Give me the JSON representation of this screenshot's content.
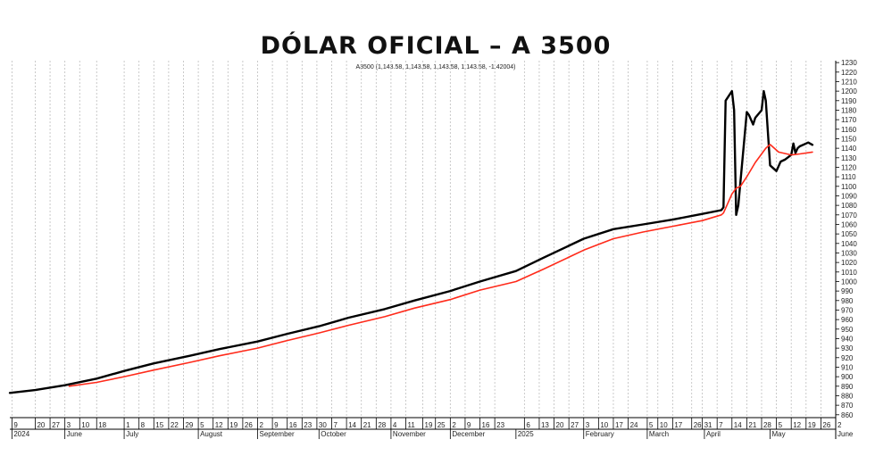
{
  "chart_data": {
    "type": "line",
    "title": "DÓLAR OFICIAL – A 3500",
    "info_text": "A3500 (1,143.58, 1,143.58, 1,143.58, 1,143.58, -1.42004)",
    "xlabel": "",
    "ylabel": "",
    "x_range": [
      "2024-05-08",
      "2025-06-02"
    ],
    "ylim": [
      857,
      1232
    ],
    "grid": true,
    "y_axis_position": "right",
    "y_ticks": [
      860,
      870,
      880,
      890,
      900,
      910,
      920,
      930,
      940,
      950,
      960,
      970,
      980,
      990,
      1000,
      1010,
      1020,
      1030,
      1040,
      1050,
      1060,
      1070,
      1080,
      1090,
      1100,
      1110,
      1120,
      1130,
      1140,
      1150,
      1160,
      1170,
      1180,
      1190,
      1200,
      1210,
      1220,
      1230
    ],
    "day_ticks": [
      {
        "label": "9",
        "date": "2024-05-09"
      },
      {
        "label": "20",
        "date": "2024-05-20"
      },
      {
        "label": "27",
        "date": "2024-05-27"
      },
      {
        "label": "3",
        "date": "2024-06-03"
      },
      {
        "label": "10",
        "date": "2024-06-10"
      },
      {
        "label": "18",
        "date": "2024-06-18"
      },
      {
        "label": "1",
        "date": "2024-07-01"
      },
      {
        "label": "8",
        "date": "2024-07-08"
      },
      {
        "label": "15",
        "date": "2024-07-15"
      },
      {
        "label": "22",
        "date": "2024-07-22"
      },
      {
        "label": "29",
        "date": "2024-07-29"
      },
      {
        "label": "5",
        "date": "2024-08-05"
      },
      {
        "label": "12",
        "date": "2024-08-12"
      },
      {
        "label": "19",
        "date": "2024-08-19"
      },
      {
        "label": "26",
        "date": "2024-08-26"
      },
      {
        "label": "2",
        "date": "2024-09-02"
      },
      {
        "label": "9",
        "date": "2024-09-09"
      },
      {
        "label": "16",
        "date": "2024-09-16"
      },
      {
        "label": "23",
        "date": "2024-09-23"
      },
      {
        "label": "30",
        "date": "2024-09-30"
      },
      {
        "label": "7",
        "date": "2024-10-07"
      },
      {
        "label": "14",
        "date": "2024-10-14"
      },
      {
        "label": "21",
        "date": "2024-10-21"
      },
      {
        "label": "28",
        "date": "2024-10-28"
      },
      {
        "label": "4",
        "date": "2024-11-04"
      },
      {
        "label": "11",
        "date": "2024-11-11"
      },
      {
        "label": "19",
        "date": "2024-11-19"
      },
      {
        "label": "25",
        "date": "2024-11-25"
      },
      {
        "label": "2",
        "date": "2024-12-02"
      },
      {
        "label": "9",
        "date": "2024-12-09"
      },
      {
        "label": "16",
        "date": "2024-12-16"
      },
      {
        "label": "23",
        "date": "2024-12-23"
      },
      {
        "label": "6",
        "date": "2025-01-06"
      },
      {
        "label": "13",
        "date": "2025-01-13"
      },
      {
        "label": "20",
        "date": "2025-01-20"
      },
      {
        "label": "27",
        "date": "2025-01-27"
      },
      {
        "label": "3",
        "date": "2025-02-03"
      },
      {
        "label": "10",
        "date": "2025-02-10"
      },
      {
        "label": "17",
        "date": "2025-02-17"
      },
      {
        "label": "24",
        "date": "2025-02-24"
      },
      {
        "label": "5",
        "date": "2025-03-05"
      },
      {
        "label": "10",
        "date": "2025-03-10"
      },
      {
        "label": "17",
        "date": "2025-03-17"
      },
      {
        "label": "26",
        "date": "2025-03-26"
      },
      {
        "label": "31",
        "date": "2025-03-31"
      },
      {
        "label": "7",
        "date": "2025-04-07"
      },
      {
        "label": "14",
        "date": "2025-04-14"
      },
      {
        "label": "21",
        "date": "2025-04-21"
      },
      {
        "label": "28",
        "date": "2025-04-28"
      },
      {
        "label": "5",
        "date": "2025-05-05"
      },
      {
        "label": "12",
        "date": "2025-05-12"
      },
      {
        "label": "19",
        "date": "2025-05-19"
      },
      {
        "label": "26",
        "date": "2025-05-26"
      },
      {
        "label": "2",
        "date": "2025-06-02"
      }
    ],
    "month_labels": [
      {
        "label": "2024",
        "date": "2024-05-09"
      },
      {
        "label": "June",
        "date": "2024-06-03"
      },
      {
        "label": "July",
        "date": "2024-07-01"
      },
      {
        "label": "August",
        "date": "2024-08-05"
      },
      {
        "label": "September",
        "date": "2024-09-02"
      },
      {
        "label": "October",
        "date": "2024-10-01"
      },
      {
        "label": "November",
        "date": "2024-11-04"
      },
      {
        "label": "December",
        "date": "2024-12-02"
      },
      {
        "label": "2025",
        "date": "2025-01-02"
      },
      {
        "label": "February",
        "date": "2025-02-03"
      },
      {
        "label": "March",
        "date": "2025-03-05"
      },
      {
        "label": "April",
        "date": "2025-04-01"
      },
      {
        "label": "May",
        "date": "2025-05-02"
      },
      {
        "label": "June",
        "date": "2025-06-02"
      }
    ],
    "series": [
      {
        "color": "#000000",
        "points": [
          [
            "2024-05-08",
            883
          ],
          [
            "2024-05-20",
            886
          ],
          [
            "2024-06-03",
            891
          ],
          [
            "2024-06-18",
            898
          ],
          [
            "2024-07-01",
            906
          ],
          [
            "2024-07-15",
            914
          ],
          [
            "2024-08-01",
            922
          ],
          [
            "2024-08-15",
            929
          ],
          [
            "2024-09-02",
            937
          ],
          [
            "2024-09-16",
            945
          ],
          [
            "2024-10-01",
            953
          ],
          [
            "2024-10-15",
            962
          ],
          [
            "2024-11-01",
            971
          ],
          [
            "2024-11-15",
            980
          ],
          [
            "2024-12-02",
            990
          ],
          [
            "2024-12-16",
            1000
          ],
          [
            "2025-01-02",
            1011
          ],
          [
            "2025-01-15",
            1025
          ],
          [
            "2025-02-03",
            1045
          ],
          [
            "2025-02-17",
            1055
          ],
          [
            "2025-03-03",
            1060
          ],
          [
            "2025-03-17",
            1065
          ],
          [
            "2025-03-31",
            1071
          ],
          [
            "2025-04-09",
            1075
          ],
          [
            "2025-04-10",
            1078
          ],
          [
            "2025-04-11",
            1190
          ],
          [
            "2025-04-14",
            1200
          ],
          [
            "2025-04-15",
            1180
          ],
          [
            "2025-04-16",
            1070
          ],
          [
            "2025-04-17",
            1080
          ],
          [
            "2025-04-21",
            1178
          ],
          [
            "2025-04-22",
            1175
          ],
          [
            "2025-04-24",
            1165
          ],
          [
            "2025-04-25",
            1172
          ],
          [
            "2025-04-28",
            1180
          ],
          [
            "2025-04-29",
            1200
          ],
          [
            "2025-04-30",
            1190
          ],
          [
            "2025-05-02",
            1122
          ],
          [
            "2025-05-05",
            1116
          ],
          [
            "2025-05-07",
            1126
          ],
          [
            "2025-05-09",
            1128
          ],
          [
            "2025-05-12",
            1133
          ],
          [
            "2025-05-13",
            1145
          ],
          [
            "2025-05-14",
            1135
          ],
          [
            "2025-05-15",
            1140
          ],
          [
            "2025-05-16",
            1142
          ],
          [
            "2025-05-19",
            1145
          ],
          [
            "2025-05-20",
            1146
          ],
          [
            "2025-05-22",
            1143.58
          ]
        ]
      },
      {
        "color": "#ff2a1a",
        "points": [
          [
            "2024-06-05",
            890
          ],
          [
            "2024-06-18",
            894
          ],
          [
            "2024-07-01",
            900
          ],
          [
            "2024-07-15",
            907
          ],
          [
            "2024-08-01",
            915
          ],
          [
            "2024-08-15",
            922
          ],
          [
            "2024-09-02",
            930
          ],
          [
            "2024-09-16",
            938
          ],
          [
            "2024-10-01",
            946
          ],
          [
            "2024-10-15",
            954
          ],
          [
            "2024-11-01",
            963
          ],
          [
            "2024-11-15",
            972
          ],
          [
            "2024-12-02",
            981
          ],
          [
            "2024-12-16",
            991
          ],
          [
            "2025-01-02",
            1000
          ],
          [
            "2025-01-15",
            1013
          ],
          [
            "2025-02-03",
            1033
          ],
          [
            "2025-02-17",
            1045
          ],
          [
            "2025-03-03",
            1052
          ],
          [
            "2025-03-17",
            1058
          ],
          [
            "2025-03-31",
            1064
          ],
          [
            "2025-04-09",
            1070
          ],
          [
            "2025-04-10",
            1072
          ],
          [
            "2025-04-14",
            1092
          ],
          [
            "2025-04-16",
            1098
          ],
          [
            "2025-04-18",
            1100
          ],
          [
            "2025-04-21",
            1110
          ],
          [
            "2025-04-25",
            1125
          ],
          [
            "2025-04-30",
            1140
          ],
          [
            "2025-05-02",
            1144
          ],
          [
            "2025-05-06",
            1136
          ],
          [
            "2025-05-12",
            1133
          ],
          [
            "2025-05-16",
            1134
          ],
          [
            "2025-05-22",
            1136
          ]
        ]
      }
    ]
  }
}
